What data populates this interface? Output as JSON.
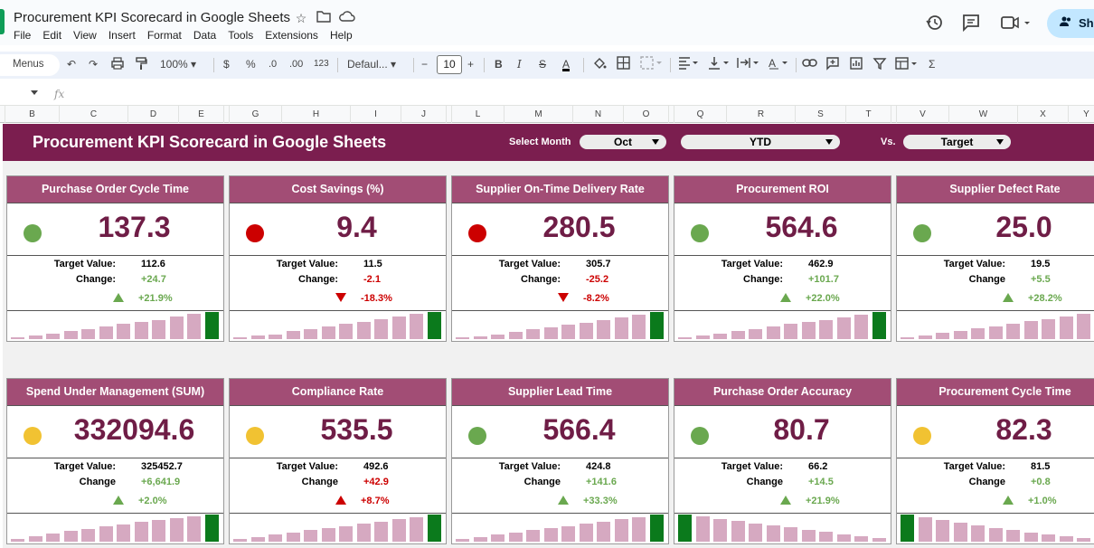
{
  "app": {
    "title": "Procurement KPI Scorecard in Google Sheets",
    "menu": [
      "File",
      "Edit",
      "View",
      "Insert",
      "Format",
      "Data",
      "Tools",
      "Extensions",
      "Help"
    ],
    "share_label": "Sha"
  },
  "toolbar": {
    "menus_label": "Menus",
    "zoom": "100%",
    "currency": "$",
    "percent": "%",
    "dec_decrease": ".0",
    "dec_increase": ".00",
    "number_format": "123",
    "font": "Defaul...",
    "font_size": "10"
  },
  "formula_bar": {
    "fx": "fx"
  },
  "columns": [
    "B",
    "C",
    "D",
    "E",
    "F",
    "G",
    "H",
    "I",
    "J",
    "K",
    "L",
    "M",
    "N",
    "O",
    "P",
    "Q",
    "R",
    "S",
    "T",
    "U",
    "V",
    "W",
    "X",
    "Y"
  ],
  "dashboard": {
    "title": "Procurement KPI Scorecard in Google Sheets",
    "select_month_label": "Select Month",
    "month": "Oct",
    "period": "YTD",
    "vs_label": "Vs.",
    "comparison": "Target"
  },
  "colors": {
    "banner": "#7b1e4f",
    "card_header": "#a24d75",
    "green": "#6aa84f",
    "red": "#cc0000",
    "amber": "#f1c232",
    "bar": "#d6a9c1",
    "bar_highlight": "#0b7a1c"
  },
  "cards": [
    {
      "title": "Purchase Order Cycle Time",
      "value": "137.3",
      "status": "green",
      "target_label": "Target Value:",
      "target": "112.6",
      "change_label": "Change:",
      "change": "+24.7",
      "direction": "up",
      "pct": "+21.9%",
      "bars": [
        0.08,
        0.12,
        0.2,
        0.3,
        0.38,
        0.46,
        0.55,
        0.62,
        0.7,
        0.82,
        0.92,
        1.0
      ],
      "highlight": 11
    },
    {
      "title": "Cost Savings (%)",
      "value": "9.4",
      "status": "red",
      "target_label": "Target Value:",
      "target": "11.5",
      "change_label": "Change:",
      "change": "-2.1",
      "direction": "down",
      "pct": "-18.3%",
      "bars": [
        0.06,
        0.12,
        0.18,
        0.3,
        0.38,
        0.46,
        0.55,
        0.63,
        0.72,
        0.82,
        0.92,
        1.0
      ],
      "highlight": 11
    },
    {
      "title": "Supplier On-Time Delivery Rate",
      "value": "280.5",
      "status": "red",
      "target_label": "Target Value:",
      "target": "305.7",
      "change_label": "Change:",
      "change": "-25.2",
      "direction": "down",
      "pct": "-8.2%",
      "bars": [
        0.06,
        0.1,
        0.18,
        0.26,
        0.36,
        0.44,
        0.52,
        0.6,
        0.7,
        0.8,
        0.9,
        1.0
      ],
      "highlight": 11
    },
    {
      "title": "Procurement ROI",
      "value": "564.6",
      "status": "green",
      "target_label": "Target Value:",
      "target": "462.9",
      "change_label": "Change:",
      "change": "+101.7",
      "direction": "up",
      "pct": "+22.0%",
      "bars": [
        0.06,
        0.12,
        0.2,
        0.3,
        0.38,
        0.46,
        0.55,
        0.62,
        0.7,
        0.8,
        0.9,
        1.0
      ],
      "highlight": 11
    },
    {
      "title": "Supplier Defect Rate",
      "value": "25.0",
      "status": "green",
      "target_label": "Target Value:",
      "target": "19.5",
      "change_label": "Change",
      "change": "+5.5",
      "direction": "up",
      "pct": "+28.2%",
      "bars": [
        0.06,
        0.14,
        0.22,
        0.3,
        0.4,
        0.48,
        0.56,
        0.66,
        0.74,
        0.82,
        0.92,
        1.0
      ],
      "highlight": -1
    },
    {
      "title": "Spend Under Management (SUM)",
      "value": "332094.6",
      "status": "amber",
      "target_label": "Target Value:",
      "target": "325452.7",
      "change_label": "Change",
      "change": "+6,641.9",
      "direction": "up",
      "pct": "+2.0%",
      "bars": [
        0.1,
        0.2,
        0.3,
        0.4,
        0.48,
        0.56,
        0.64,
        0.72,
        0.8,
        0.88,
        0.94,
        1.0
      ],
      "highlight": 11
    },
    {
      "title": "Compliance Rate",
      "value": "535.5",
      "status": "amber",
      "target_label": "Target Value:",
      "target": "492.6",
      "change_label": "Change",
      "change": "+42.9",
      "direction": "up_red",
      "pct": "+8.7%",
      "bars": [
        0.1,
        0.18,
        0.26,
        0.34,
        0.42,
        0.5,
        0.58,
        0.66,
        0.74,
        0.82,
        0.9,
        1.0
      ],
      "highlight": 11
    },
    {
      "title": "Supplier Lead Time",
      "value": "566.4",
      "status": "green",
      "target_label": "Target Value:",
      "target": "424.8",
      "change_label": "Change",
      "change": "+141.6",
      "direction": "up",
      "pct": "+33.3%",
      "bars": [
        0.1,
        0.18,
        0.26,
        0.34,
        0.42,
        0.5,
        0.58,
        0.66,
        0.74,
        0.82,
        0.9,
        1.0
      ],
      "highlight": 11
    },
    {
      "title": "Purchase Order Accuracy",
      "value": "80.7",
      "status": "green",
      "target_label": "Target Value:",
      "target": "66.2",
      "change_label": "Change",
      "change": "+14.5",
      "direction": "up",
      "pct": "+21.9%",
      "bars": [
        1.0,
        0.92,
        0.84,
        0.76,
        0.68,
        0.6,
        0.52,
        0.44,
        0.36,
        0.28,
        0.2,
        0.12
      ],
      "highlight": 0
    },
    {
      "title": "Procurement Cycle Time",
      "value": "82.3",
      "status": "amber",
      "target_label": "Target Value:",
      "target": "81.5",
      "change_label": "Change",
      "change": "+0.8",
      "direction": "up",
      "pct": "+1.0%",
      "bars": [
        1.0,
        0.9,
        0.8,
        0.7,
        0.6,
        0.5,
        0.42,
        0.34,
        0.26,
        0.2,
        0.14,
        0.1
      ],
      "highlight": 0
    }
  ]
}
